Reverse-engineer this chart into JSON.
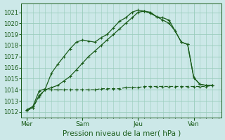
{
  "bg_color": "#cce8e8",
  "grid_color": "#99ccbb",
  "line_color": "#1a5c1a",
  "xlabel": "Pression niveau de la mer( hPa )",
  "ylim": [
    1011.5,
    1021.8
  ],
  "yticks": [
    1012,
    1013,
    1014,
    1015,
    1016,
    1017,
    1018,
    1019,
    1020,
    1021
  ],
  "day_labels": [
    "Mer",
    "Sam",
    "Jeu",
    "Ven"
  ],
  "day_positions": [
    0,
    3,
    6,
    9
  ],
  "xlim": [
    -0.3,
    10.5
  ],
  "series1_x": [
    0,
    0.33,
    0.67,
    1.0,
    1.33,
    1.67,
    2.0,
    2.33,
    2.67,
    3.0,
    3.33,
    3.67,
    4.0,
    4.33,
    4.67,
    5.0,
    5.33,
    5.67,
    6.0,
    6.33,
    6.67,
    7.0,
    7.33,
    7.67,
    8.0,
    8.33,
    8.67,
    9.0,
    9.33,
    9.67,
    10.0
  ],
  "series1_y": [
    1012.2,
    1012.5,
    1013.9,
    1014.1,
    1015.5,
    1016.3,
    1017.0,
    1017.7,
    1018.3,
    1018.5,
    1018.4,
    1018.3,
    1018.7,
    1019.0,
    1019.6,
    1020.2,
    1020.5,
    1021.0,
    1021.2,
    1021.1,
    1021.0,
    1020.6,
    1020.5,
    1020.3,
    1019.3,
    1018.3,
    1018.1,
    1015.1,
    1014.5,
    1014.4,
    1014.4
  ],
  "series2_x": [
    0,
    0.33,
    0.67,
    1.0,
    1.33,
    1.67,
    2.0,
    2.33,
    2.67,
    3.0,
    3.33,
    3.67,
    4.0,
    4.33,
    4.67,
    5.0,
    5.33,
    5.67,
    6.0,
    6.33,
    6.67,
    7.0,
    7.33,
    7.67,
    8.0,
    8.33,
    8.67,
    9.0,
    9.33,
    9.67,
    10.0
  ],
  "series2_y": [
    1012.1,
    1012.4,
    1013.5,
    1014.0,
    1014.2,
    1014.4,
    1014.8,
    1015.2,
    1015.8,
    1016.4,
    1017.0,
    1017.5,
    1018.0,
    1018.5,
    1019.0,
    1019.5,
    1020.0,
    1020.5,
    1021.0,
    1021.1,
    1020.9,
    1020.6,
    1020.3,
    1020.0,
    1019.3,
    1018.3,
    1018.1,
    1015.1,
    1014.5,
    1014.4,
    1014.4
  ],
  "series3_x": [
    0,
    0.33,
    0.67,
    1.0,
    1.33,
    1.67,
    2.0,
    2.33,
    2.67,
    3.0,
    3.33,
    3.67,
    4.0,
    4.33,
    4.67,
    5.0,
    5.33,
    5.67,
    6.0,
    6.33,
    6.67,
    7.0,
    7.33,
    7.67,
    8.0,
    8.33,
    8.67,
    9.0,
    9.33,
    9.67,
    10.0
  ],
  "series3_y": [
    1012.2,
    1012.4,
    1013.4,
    1014.0,
    1014.0,
    1014.0,
    1014.0,
    1014.0,
    1014.0,
    1014.0,
    1014.0,
    1014.0,
    1014.1,
    1014.1,
    1014.1,
    1014.1,
    1014.2,
    1014.2,
    1014.2,
    1014.3,
    1014.3,
    1014.3,
    1014.3,
    1014.3,
    1014.3,
    1014.3,
    1014.3,
    1014.3,
    1014.3,
    1014.3,
    1014.4
  ]
}
